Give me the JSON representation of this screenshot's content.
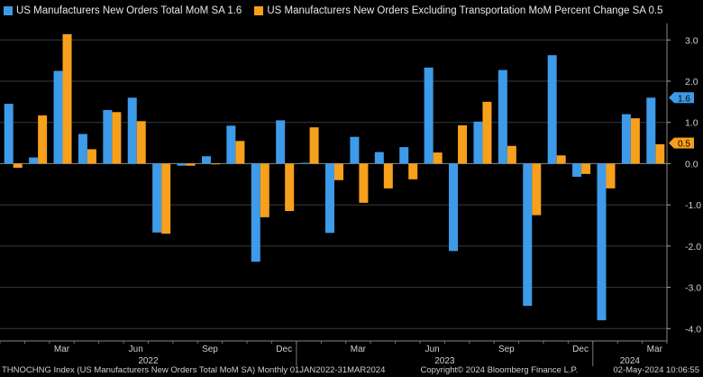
{
  "chart_data": {
    "type": "bar",
    "categories": [
      "Jan 2022",
      "Feb 2022",
      "Mar 2022",
      "Apr 2022",
      "May 2022",
      "Jun 2022",
      "Jul 2022",
      "Aug 2022",
      "Sep 2022",
      "Oct 2022",
      "Nov 2022",
      "Dec 2022",
      "Jan 2023",
      "Feb 2023",
      "Mar 2023",
      "Apr 2023",
      "May 2023",
      "Jun 2023",
      "Jul 2023",
      "Aug 2023",
      "Sep 2023",
      "Oct 2023",
      "Nov 2023",
      "Dec 2023",
      "Jan 2024",
      "Feb 2024",
      "Mar 2024"
    ],
    "series": [
      {
        "name": "US Manufacturers New Orders Total MoM SA 1.6",
        "color": "#3d9be9",
        "values": [
          1.45,
          0.15,
          2.25,
          0.72,
          1.3,
          1.6,
          -1.67,
          -0.05,
          0.18,
          0.92,
          -2.38,
          1.05,
          0.02,
          -1.68,
          0.65,
          0.28,
          0.4,
          2.33,
          -2.12,
          1.02,
          2.27,
          -3.45,
          2.63,
          -0.32,
          -3.8,
          1.2,
          1.6
        ]
      },
      {
        "name": "US Manufacturers New Orders Excluding Transportation MoM Percent Change SA 0.5",
        "color": "#f7a01c",
        "values": [
          -0.1,
          1.17,
          3.14,
          0.35,
          1.25,
          1.03,
          -1.7,
          -0.05,
          0.0,
          0.55,
          -1.3,
          -1.15,
          0.88,
          -0.4,
          -0.95,
          -0.6,
          -0.38,
          0.27,
          0.93,
          1.5,
          0.43,
          -1.25,
          0.2,
          -0.25,
          -0.6,
          1.1,
          0.47
        ]
      }
    ],
    "month_labels": [
      {
        "index": 2,
        "label": "Mar"
      },
      {
        "index": 5,
        "label": "Jun"
      },
      {
        "index": 8,
        "label": "Sep"
      },
      {
        "index": 11,
        "label": "Dec"
      },
      {
        "index": 14,
        "label": "Mar"
      },
      {
        "index": 17,
        "label": "Jun"
      },
      {
        "index": 20,
        "label": "Sep"
      },
      {
        "index": 23,
        "label": "Dec"
      },
      {
        "index": 26,
        "label": "Mar"
      }
    ],
    "year_labels": [
      {
        "start": 0,
        "end": 11,
        "label": "2022"
      },
      {
        "start": 12,
        "end": 23,
        "label": "2023"
      },
      {
        "start": 24,
        "end": 26,
        "label": "2024"
      }
    ],
    "yticks": [
      3.0,
      2.0,
      1.0,
      0.0,
      -1.0,
      -2.0,
      -3.0,
      -4.0
    ],
    "ytick_labels": [
      "3.0",
      "2.0",
      "1.0",
      "0.0",
      "-1.0",
      "-2.0",
      "-3.0",
      "-4.0"
    ],
    "ylim": [
      -4.3,
      3.4
    ],
    "grid": true,
    "last_value_labels": [
      {
        "series": 0,
        "value": 1.6,
        "text": "1.6"
      },
      {
        "series": 1,
        "value": 0.5,
        "text": "0.5"
      }
    ],
    "legend_position": "top-left"
  },
  "footer": {
    "index": "THNOCHNG Index (US Manufacturers New Orders Total MoM SA)  Monthly 01JAN2022-31MAR2024",
    "copyright": "Copyright© 2024 Bloomberg Finance L.P.",
    "timestamp": "02-May-2024 10:06:55"
  }
}
